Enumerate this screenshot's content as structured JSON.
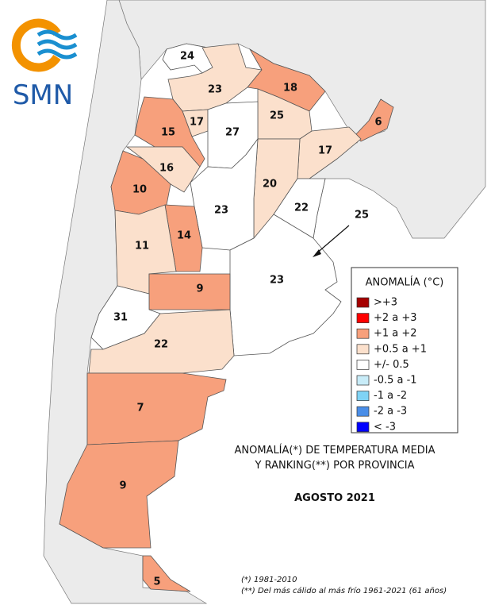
{
  "logo": {
    "text": "SMN"
  },
  "provinces": [
    {
      "ranking": "24",
      "color": "#ffffff"
    },
    {
      "ranking": "23",
      "color": "#fbe0cc"
    },
    {
      "ranking": "18",
      "color": "#f7a07c"
    },
    {
      "ranking": "25",
      "color": "#fbe0cc"
    },
    {
      "ranking": "6",
      "color": "#f7a07c"
    },
    {
      "ranking": "17",
      "color": "#fbe0cc"
    },
    {
      "ranking": "17",
      "color": "#fbe0cc"
    },
    {
      "ranking": "15",
      "color": "#f7a07c"
    },
    {
      "ranking": "27",
      "color": "#ffffff"
    },
    {
      "ranking": "16",
      "color": "#fbe0cc"
    },
    {
      "ranking": "10",
      "color": "#f7a07c"
    },
    {
      "ranking": "20",
      "color": "#fbe0cc"
    },
    {
      "ranking": "22",
      "color": "#ffffff"
    },
    {
      "ranking": "23",
      "color": "#ffffff"
    },
    {
      "ranking": "14",
      "color": "#f7a07c"
    },
    {
      "ranking": "11",
      "color": "#fbe0cc"
    },
    {
      "ranking": "23",
      "color": "#ffffff"
    },
    {
      "ranking": "9",
      "color": "#f7a07c"
    },
    {
      "ranking": "31",
      "color": "#ffffff"
    },
    {
      "ranking": "22",
      "color": "#fbe0cc"
    },
    {
      "ranking": "7",
      "color": "#f7a07c"
    },
    {
      "ranking": "9",
      "color": "#f7a07c"
    },
    {
      "ranking": "5",
      "color": "#f7a07c"
    }
  ],
  "caba": {
    "ranking": "25",
    "color": "#ffffff"
  },
  "legend": {
    "title": "ANOMALÍA (°C)",
    "items": [
      {
        "label": ">+3",
        "color": "#a50000"
      },
      {
        "label": "+2 a +3",
        "color": "#ff0000"
      },
      {
        "label": "+1 a +2",
        "color": "#f7a07c"
      },
      {
        "label": "+0.5 a +1",
        "color": "#fbe0cc"
      },
      {
        "label": "+/- 0.5",
        "color": "#ffffff"
      },
      {
        "label": "-0.5 a -1",
        "color": "#c8ecf8"
      },
      {
        "label": "-1 a -2",
        "color": "#7fd3f5"
      },
      {
        "label": "-2 a -3",
        "color": "#4a8ee8"
      },
      {
        "label": "< -3",
        "color": "#0000ff"
      }
    ]
  },
  "title": {
    "line1": "ANOMALÍA(*) DE TEMPERATURA MEDIA",
    "line2": "Y RANKING(**) POR PROVINCIA",
    "period": "AGOSTO 2021"
  },
  "footnotes": [
    "(*)  1981-2010",
    "(**) Del más cálido al más frío 1961-2021  (61 años)"
  ]
}
